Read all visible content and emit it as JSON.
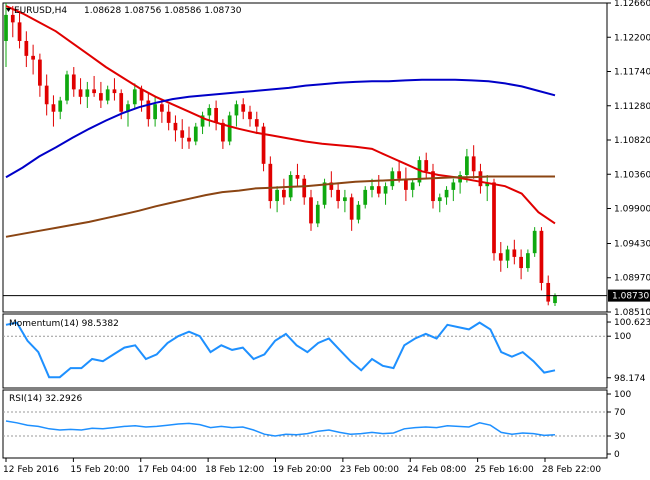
{
  "chart_data": {
    "type": "candlestick",
    "title": "EURUSD,H4",
    "ohlc_values": "1.08628 1.08756 1.08586 1.08730",
    "current_price": 1.0873,
    "current_price_label": "1.08730",
    "price_axis": {
      "ylim": [
        1.0851,
        1.1266
      ],
      "ticks": [
        "1.12660",
        "1.12200",
        "1.11740",
        "1.11280",
        "1.10820",
        "1.10360",
        "1.09900",
        "1.09430",
        "1.08970",
        "1.08510"
      ]
    },
    "x_axis": {
      "labels": [
        "12 Feb 2016",
        "15 Feb 20:00",
        "17 Feb 04:00",
        "18 Feb 12:00",
        "19 Feb 20:00",
        "23 Feb 00:00",
        "24 Feb 08:00",
        "25 Feb 16:00",
        "28 Feb 22:00"
      ]
    },
    "candles": [
      [
        1.1215,
        1.1266,
        1.118,
        1.125
      ],
      [
        1.125,
        1.1262,
        1.122,
        1.124
      ],
      [
        1.124,
        1.1255,
        1.1205,
        1.1215
      ],
      [
        1.1215,
        1.1228,
        1.118,
        1.1195
      ],
      [
        1.1195,
        1.121,
        1.117,
        1.119
      ],
      [
        1.119,
        1.1198,
        1.114,
        1.1155
      ],
      [
        1.1155,
        1.117,
        1.1115,
        1.113
      ],
      [
        1.113,
        1.1142,
        1.11,
        1.112
      ],
      [
        1.112,
        1.114,
        1.111,
        1.1135
      ],
      [
        1.1135,
        1.1175,
        1.113,
        1.117
      ],
      [
        1.117,
        1.118,
        1.114,
        1.115
      ],
      [
        1.115,
        1.1165,
        1.113,
        1.114
      ],
      [
        1.114,
        1.116,
        1.1125,
        1.115
      ],
      [
        1.115,
        1.1168,
        1.114,
        1.1145
      ],
      [
        1.1145,
        1.116,
        1.1125,
        1.1135
      ],
      [
        1.1135,
        1.1155,
        1.113,
        1.115
      ],
      [
        1.115,
        1.1165,
        1.1135,
        1.1145
      ],
      [
        1.1145,
        1.115,
        1.111,
        1.112
      ],
      [
        1.112,
        1.1135,
        1.11,
        1.113
      ],
      [
        1.113,
        1.1158,
        1.1125,
        1.115
      ],
      [
        1.115,
        1.1155,
        1.112,
        1.1135
      ],
      [
        1.1135,
        1.1145,
        1.11,
        1.111
      ],
      [
        1.111,
        1.114,
        1.11,
        1.113
      ],
      [
        1.113,
        1.1135,
        1.1105,
        1.112
      ],
      [
        1.112,
        1.113,
        1.1095,
        1.1105
      ],
      [
        1.1105,
        1.1115,
        1.108,
        1.1095
      ],
      [
        1.1095,
        1.111,
        1.107,
        1.1085
      ],
      [
        1.1085,
        1.11,
        1.107,
        1.108
      ],
      [
        1.108,
        1.1105,
        1.1075,
        1.11
      ],
      [
        1.11,
        1.112,
        1.109,
        1.1115
      ],
      [
        1.1115,
        1.113,
        1.11,
        1.1125
      ],
      [
        1.1125,
        1.1135,
        1.1095,
        1.1105
      ],
      [
        1.1105,
        1.111,
        1.107,
        1.108
      ],
      [
        1.108,
        1.112,
        1.1075,
        1.1115
      ],
      [
        1.1115,
        1.1135,
        1.11,
        1.113
      ],
      [
        1.113,
        1.1138,
        1.111,
        1.112
      ],
      [
        1.112,
        1.1128,
        1.11,
        1.111
      ],
      [
        1.111,
        1.112,
        1.109,
        1.11
      ],
      [
        1.11,
        1.1105,
        1.104,
        1.105
      ],
      [
        1.105,
        1.106,
        1.099,
        1.1
      ],
      [
        1.1,
        1.102,
        1.0985,
        1.1015
      ],
      [
        1.1015,
        1.103,
        1.0995,
        1.1005
      ],
      [
        1.1005,
        1.104,
        1.1,
        1.1035
      ],
      [
        1.1035,
        1.105,
        1.102,
        1.103
      ],
      [
        1.103,
        1.1035,
        1.0995,
        1.1005
      ],
      [
        1.1005,
        1.1015,
        1.096,
        1.097
      ],
      [
        1.097,
        1.1,
        1.0965,
        1.0995
      ],
      [
        1.0995,
        1.103,
        1.099,
        1.1025
      ],
      [
        1.1025,
        1.104,
        1.1005,
        1.1015
      ],
      [
        1.1015,
        1.1025,
        1.099,
        1.1
      ],
      [
        1.1,
        1.1015,
        1.0985,
        1.1005
      ],
      [
        1.1005,
        1.101,
        1.096,
        1.0975
      ],
      [
        1.0975,
        1.1,
        1.097,
        1.0995
      ],
      [
        1.0995,
        1.102,
        1.099,
        1.1015
      ],
      [
        1.1015,
        1.103,
        1.1005,
        1.102
      ],
      [
        1.102,
        1.1035,
        1.1005,
        1.101
      ],
      [
        1.101,
        1.1025,
        1.0995,
        1.102
      ],
      [
        1.102,
        1.1045,
        1.1015,
        1.104
      ],
      [
        1.104,
        1.1055,
        1.1025,
        1.103
      ],
      [
        1.103,
        1.1045,
        1.1,
        1.1015
      ],
      [
        1.1015,
        1.103,
        1.1005,
        1.1025
      ],
      [
        1.1025,
        1.106,
        1.102,
        1.1055
      ],
      [
        1.1055,
        1.1065,
        1.103,
        1.104
      ],
      [
        1.104,
        1.105,
        1.099,
        1.1
      ],
      [
        1.1,
        1.101,
        1.0985,
        1.1005
      ],
      [
        1.1005,
        1.102,
        1.0995,
        1.1015
      ],
      [
        1.1015,
        1.103,
        1.1,
        1.1025
      ],
      [
        1.1025,
        1.104,
        1.101,
        1.1035
      ],
      [
        1.1035,
        1.107,
        1.1025,
        1.106
      ],
      [
        1.106,
        1.1075,
        1.103,
        1.104
      ],
      [
        1.104,
        1.105,
        1.101,
        1.102
      ],
      [
        1.102,
        1.1035,
        1.1,
        1.1025
      ],
      [
        1.1025,
        1.103,
        1.092,
        1.093
      ],
      [
        1.093,
        1.0945,
        1.0905,
        1.092
      ],
      [
        1.092,
        1.094,
        1.091,
        1.0935
      ],
      [
        1.0935,
        1.0948,
        1.0915,
        1.0925
      ],
      [
        1.0925,
        1.0935,
        1.0895,
        1.091
      ],
      [
        1.091,
        1.0935,
        1.0905,
        1.093
      ],
      [
        1.093,
        1.0965,
        1.0925,
        1.096
      ],
      [
        1.096,
        1.0965,
        1.088,
        1.089
      ],
      [
        1.089,
        1.09,
        1.086,
        1.0865
      ],
      [
        1.0863,
        1.0876,
        1.0859,
        1.0873
      ]
    ],
    "moving_averages": [
      {
        "color": "#e00000",
        "values": [
          1.1262,
          1.1252,
          1.124,
          1.1228,
          1.1212,
          1.1196,
          1.118,
          1.1166,
          1.1152,
          1.114,
          1.113,
          1.112,
          1.111,
          1.1103,
          1.1097,
          1.1092,
          1.1088,
          1.1084,
          1.108,
          1.1077,
          1.1075,
          1.1073,
          1.107,
          1.106,
          1.105,
          1.104,
          1.1035,
          1.1032,
          1.1028,
          1.1024,
          1.102,
          1.101,
          1.0985,
          1.097
        ]
      },
      {
        "color": "#0000c8",
        "values": [
          1.1032,
          1.1045,
          1.106,
          1.1072,
          1.1085,
          1.1097,
          1.1108,
          1.1118,
          1.1126,
          1.1132,
          1.1137,
          1.114,
          1.1142,
          1.1144,
          1.1146,
          1.1148,
          1.115,
          1.1152,
          1.1155,
          1.1157,
          1.1159,
          1.116,
          1.1161,
          1.1161,
          1.1162,
          1.1163,
          1.1163,
          1.1163,
          1.1162,
          1.1161,
          1.1158,
          1.1154,
          1.1148,
          1.1142
        ]
      },
      {
        "color": "#8b4513",
        "values": [
          1.0952,
          1.0956,
          1.096,
          1.0964,
          1.0968,
          1.0972,
          1.0977,
          1.0982,
          1.0987,
          1.0993,
          1.0998,
          1.1003,
          1.1008,
          1.1012,
          1.1014,
          1.1017,
          1.1018,
          1.1019,
          1.102,
          1.1022,
          1.1024,
          1.1026,
          1.1027,
          1.1028,
          1.1029,
          1.103,
          1.1031,
          1.1032,
          1.1032,
          1.1033,
          1.1033,
          1.1033,
          1.1033,
          1.1033
        ]
      }
    ],
    "momentum": {
      "title": "Momentum(14) 98.5382",
      "ylim": [
        97.9,
        100.8
      ],
      "ticks": [
        "100.6231",
        "100",
        "98.174"
      ],
      "values": [
        100.5,
        100.6,
        99.8,
        99.3,
        98.2,
        98.2,
        98.6,
        98.6,
        99.0,
        98.9,
        99.2,
        99.5,
        99.6,
        99.0,
        99.2,
        99.7,
        100.0,
        100.2,
        100.0,
        99.3,
        99.6,
        99.4,
        99.5,
        99.0,
        99.2,
        99.8,
        100.1,
        99.6,
        99.3,
        99.7,
        99.9,
        99.4,
        98.9,
        98.5,
        99.0,
        98.7,
        98.6,
        99.6,
        99.9,
        100.1,
        99.9,
        100.5,
        100.4,
        100.3,
        100.6,
        100.3,
        99.3,
        99.1,
        99.3,
        98.9,
        98.4,
        98.5
      ]
    },
    "rsi": {
      "title": "RSI(14) 32.2926",
      "ylim": [
        0,
        100
      ],
      "ticks": [
        "100",
        "70",
        "30",
        "0"
      ],
      "values": [
        55,
        52,
        48,
        46,
        42,
        40,
        41,
        40,
        43,
        42,
        44,
        46,
        47,
        45,
        46,
        48,
        50,
        51,
        49,
        44,
        46,
        44,
        45,
        40,
        33,
        30,
        33,
        32,
        34,
        38,
        40,
        36,
        33,
        34,
        36,
        34,
        35,
        42,
        44,
        45,
        44,
        47,
        46,
        45,
        52,
        48,
        36,
        33,
        35,
        34,
        31,
        32
      ]
    }
  }
}
